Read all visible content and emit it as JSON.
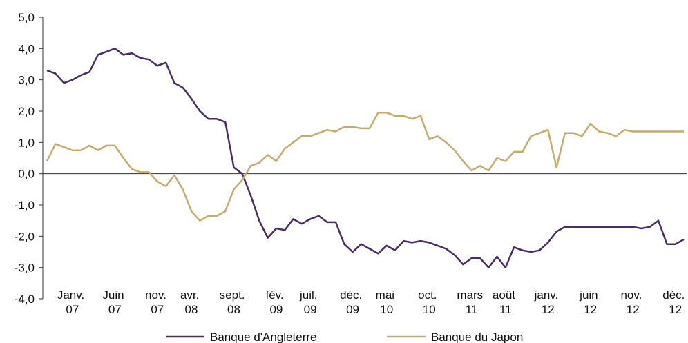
{
  "chart_data": {
    "type": "line",
    "categories": [
      null,
      null,
      null,
      "Janv. 07",
      null,
      null,
      null,
      null,
      "Juin 07",
      null,
      null,
      null,
      null,
      "nov. 07",
      null,
      null,
      null,
      "avr. 08",
      null,
      null,
      null,
      null,
      "sept. 08",
      null,
      null,
      null,
      null,
      "fév. 09",
      null,
      null,
      null,
      "juil. 09",
      null,
      null,
      null,
      null,
      "déc. 09",
      null,
      null,
      null,
      "mai 10",
      null,
      null,
      null,
      null,
      "oct. 10",
      null,
      null,
      null,
      null,
      "mars 11",
      null,
      null,
      null,
      "août 11",
      null,
      null,
      null,
      null,
      "janv. 12",
      null,
      null,
      null,
      null,
      "juin 12",
      null,
      null,
      null,
      null,
      "nov. 12",
      null,
      null,
      null,
      null,
      "déc. 12",
      null
    ],
    "series": [
      {
        "name": "Banque d'Angleterre",
        "color": "#4b2a6b",
        "values": [
          3.3,
          3.2,
          2.9,
          3.0,
          3.15,
          3.25,
          3.8,
          3.9,
          4.0,
          3.8,
          3.85,
          3.7,
          3.65,
          3.45,
          3.55,
          2.9,
          2.75,
          2.4,
          2.0,
          1.75,
          1.75,
          1.65,
          0.2,
          0.0,
          -0.7,
          -1.5,
          -2.05,
          -1.75,
          -1.8,
          -1.45,
          -1.6,
          -1.45,
          -1.35,
          -1.55,
          -1.55,
          -2.25,
          -2.5,
          -2.25,
          -2.4,
          -2.55,
          -2.3,
          -2.45,
          -2.15,
          -2.2,
          -2.15,
          -2.2,
          -2.3,
          -2.4,
          -2.6,
          -2.9,
          -2.7,
          -2.7,
          -3.0,
          -2.65,
          -3.0,
          -2.35,
          -2.45,
          -2.5,
          -2.45,
          -2.2,
          -1.85,
          -1.7,
          -1.7,
          -1.7,
          -1.7,
          -1.7,
          -1.7,
          -1.7,
          -1.7,
          -1.7,
          -1.75,
          -1.7,
          -1.5,
          -2.25,
          -2.25,
          -2.1
        ]
      },
      {
        "name": "Banque du Japon",
        "color": "#c8aa6a",
        "values": [
          0.4,
          0.95,
          0.85,
          0.75,
          0.75,
          0.9,
          0.75,
          0.9,
          0.9,
          0.5,
          0.15,
          0.05,
          0.05,
          -0.25,
          -0.4,
          -0.05,
          -0.5,
          -1.2,
          -1.5,
          -1.35,
          -1.35,
          -1.2,
          -0.5,
          -0.2,
          0.25,
          0.35,
          0.6,
          0.4,
          0.8,
          1.0,
          1.2,
          1.2,
          1.3,
          1.4,
          1.35,
          1.5,
          1.5,
          1.45,
          1.45,
          1.95,
          1.95,
          1.85,
          1.85,
          1.75,
          1.85,
          1.1,
          1.2,
          1.0,
          0.75,
          0.4,
          0.1,
          0.25,
          0.1,
          0.5,
          0.4,
          0.7,
          0.7,
          1.2,
          1.3,
          1.4,
          0.2,
          1.3,
          1.3,
          1.2,
          1.6,
          1.35,
          1.3,
          1.2,
          1.4,
          1.35,
          1.35,
          1.35,
          1.35,
          1.35,
          1.35,
          1.35
        ]
      }
    ],
    "ylim": [
      -4,
      5
    ],
    "yticks": [
      {
        "value": -4,
        "label": "-4,0"
      },
      {
        "value": -3,
        "label": "-3,0"
      },
      {
        "value": -2,
        "label": "-2,0"
      },
      {
        "value": -1,
        "label": "-1,0"
      },
      {
        "value": 0,
        "label": "0,0"
      },
      {
        "value": 1,
        "label": "1,0"
      },
      {
        "value": 2,
        "label": "2,0"
      },
      {
        "value": 3,
        "label": "3,0"
      },
      {
        "value": 4,
        "label": "4,0"
      },
      {
        "value": 5,
        "label": "5,0"
      }
    ],
    "grid": false,
    "legend": "bottom"
  }
}
